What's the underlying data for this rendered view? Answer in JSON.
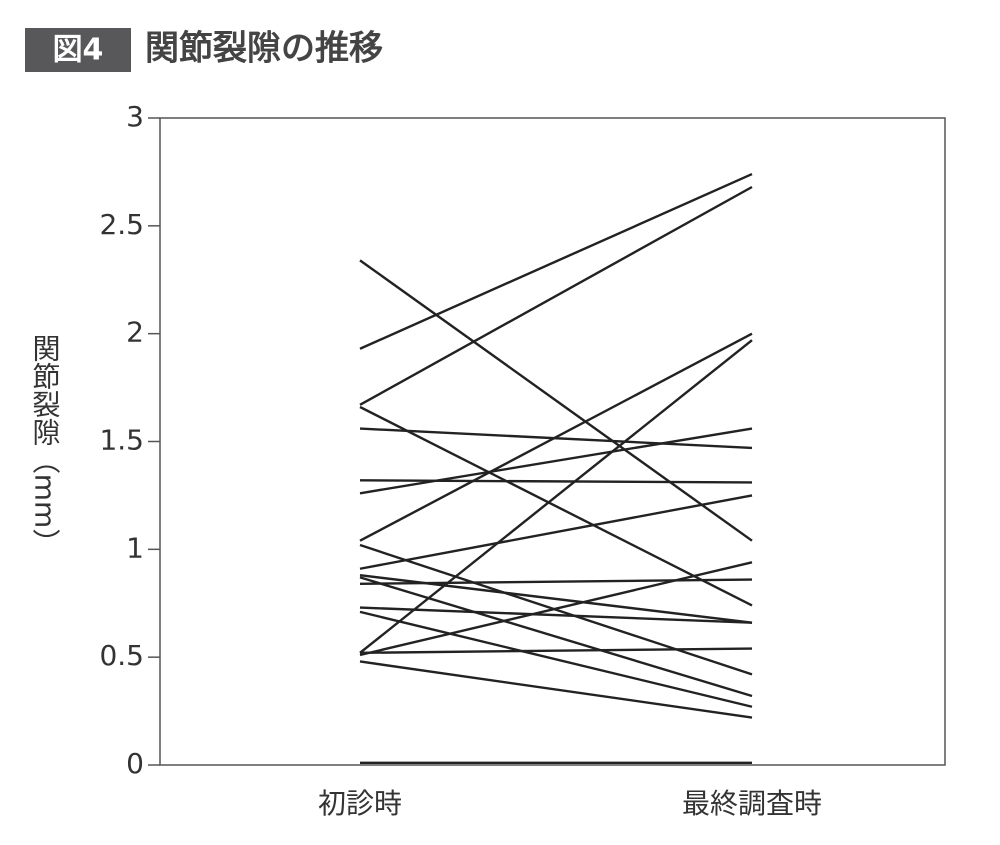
{
  "chart_data": {
    "type": "slope",
    "badge": "図4",
    "title": "関節裂隙の推移",
    "y_label": "関節裂隙（mm）",
    "categories": [
      "初診時",
      "最終調査時"
    ],
    "ylim": [
      0,
      3
    ],
    "yticks": [
      0,
      0.5,
      1,
      1.5,
      2,
      2.5,
      3
    ],
    "color": "#222222",
    "series": [
      {
        "values": [
          1.93,
          2.74
        ]
      },
      {
        "values": [
          1.67,
          2.68
        ]
      },
      {
        "values": [
          2.34,
          1.04
        ]
      },
      {
        "values": [
          1.66,
          0.74
        ]
      },
      {
        "values": [
          1.56,
          1.47
        ]
      },
      {
        "values": [
          1.32,
          1.31
        ]
      },
      {
        "values": [
          1.26,
          1.56
        ]
      },
      {
        "values": [
          1.04,
          2.0
        ]
      },
      {
        "values": [
          1.02,
          0.42
        ]
      },
      {
        "values": [
          0.91,
          1.25
        ]
      },
      {
        "values": [
          0.88,
          0.66
        ]
      },
      {
        "values": [
          0.87,
          0.32
        ]
      },
      {
        "values": [
          0.84,
          0.86
        ]
      },
      {
        "values": [
          0.73,
          0.66
        ]
      },
      {
        "values": [
          0.71,
          0.27
        ]
      },
      {
        "values": [
          0.52,
          1.97
        ]
      },
      {
        "values": [
          0.51,
          0.94
        ]
      },
      {
        "values": [
          0.52,
          0.54
        ]
      },
      {
        "values": [
          0.48,
          0.22
        ]
      },
      {
        "values": [
          0.01,
          0.01
        ]
      }
    ]
  }
}
